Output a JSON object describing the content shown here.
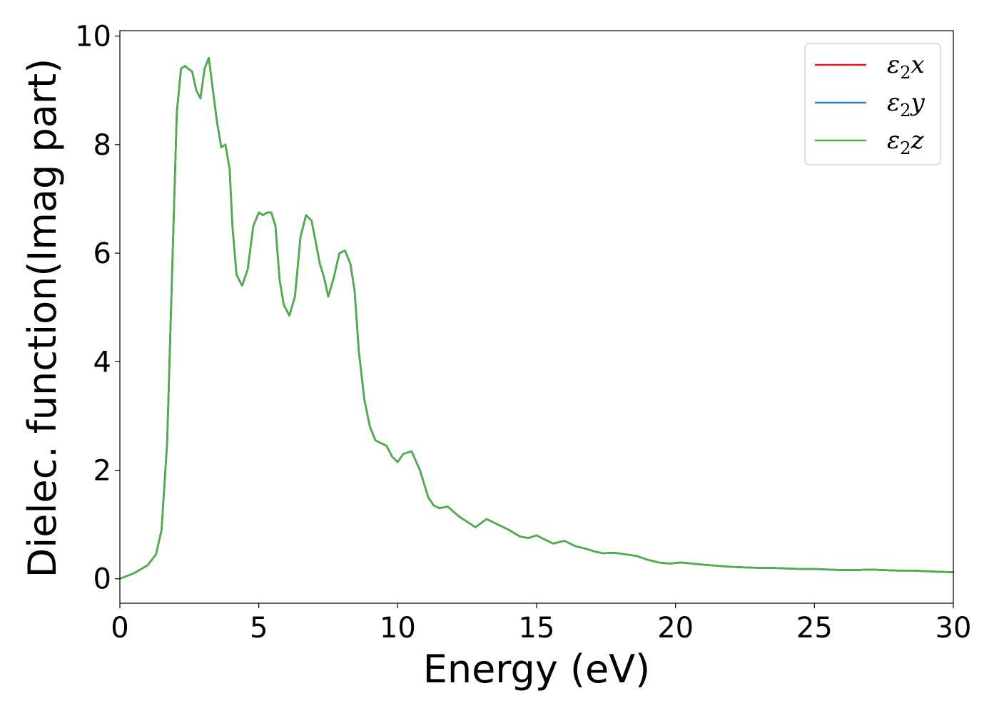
{
  "chart_data": {
    "type": "line",
    "xlabel": "Energy (eV)",
    "ylabel": "Dielec. function(Imag part)",
    "xlim": [
      0,
      30
    ],
    "ylim": [
      -0.45,
      10.1
    ],
    "xticks": [
      0,
      5,
      10,
      15,
      20,
      25,
      30
    ],
    "xtick_labels": [
      "0",
      "5",
      "10",
      "15",
      "20",
      "25",
      "30"
    ],
    "yticks": [
      0,
      2,
      4,
      6,
      8,
      10
    ],
    "ytick_labels": [
      "0",
      "2",
      "4",
      "6",
      "8",
      "10"
    ],
    "grid": false,
    "legend_position": "top-right",
    "legend": [
      {
        "base": "ε",
        "sub": "2",
        "axis": "x",
        "color": "#e41a1c"
      },
      {
        "base": "ε",
        "sub": "2",
        "axis": "y",
        "color": "#377eb8"
      },
      {
        "base": "ε",
        "sub": "2",
        "axis": "z",
        "color": "#4daf4a"
      }
    ],
    "series": [
      {
        "name": "ε2x",
        "color": "#e41a1c"
      },
      {
        "name": "ε2y",
        "color": "#377eb8"
      },
      {
        "name": "ε2z",
        "color": "#4daf4a"
      }
    ],
    "x": [
      0,
      0.5,
      1.0,
      1.3,
      1.5,
      1.7,
      1.9,
      2.05,
      2.2,
      2.35,
      2.45,
      2.6,
      2.75,
      2.9,
      3.05,
      3.2,
      3.35,
      3.5,
      3.65,
      3.8,
      3.95,
      4.05,
      4.2,
      4.4,
      4.6,
      4.8,
      5.0,
      5.15,
      5.3,
      5.45,
      5.6,
      5.75,
      5.9,
      6.1,
      6.3,
      6.5,
      6.7,
      6.9,
      7.05,
      7.2,
      7.35,
      7.5,
      7.7,
      7.9,
      8.1,
      8.3,
      8.45,
      8.6,
      8.8,
      9.0,
      9.2,
      9.4,
      9.6,
      9.8,
      10.0,
      10.2,
      10.5,
      10.8,
      11.1,
      11.3,
      11.5,
      11.8,
      12.2,
      12.5,
      12.8,
      13.2,
      13.6,
      14.0,
      14.4,
      14.7,
      15.0,
      15.3,
      15.6,
      16.0,
      16.4,
      16.8,
      17.1,
      17.4,
      17.8,
      18.2,
      18.6,
      19.0,
      19.4,
      19.8,
      20.2,
      20.6,
      21.0,
      21.5,
      22.0,
      22.5,
      23.0,
      23.5,
      24.0,
      24.5,
      25.0,
      25.5,
      26.0,
      26.5,
      27.0,
      27.5,
      28.0,
      28.5,
      29.0,
      29.5,
      30.0
    ],
    "values": [
      0.0,
      0.1,
      0.25,
      0.45,
      0.9,
      2.5,
      6.0,
      8.6,
      9.4,
      9.45,
      9.4,
      9.35,
      9.0,
      8.85,
      9.4,
      9.6,
      9.0,
      8.4,
      7.95,
      8.0,
      7.55,
      6.5,
      5.6,
      5.4,
      5.7,
      6.5,
      6.75,
      6.7,
      6.75,
      6.75,
      6.5,
      5.5,
      5.05,
      4.85,
      5.2,
      6.3,
      6.7,
      6.6,
      6.2,
      5.8,
      5.55,
      5.2,
      5.55,
      6.0,
      6.05,
      5.8,
      5.3,
      4.2,
      3.3,
      2.8,
      2.55,
      2.5,
      2.45,
      2.25,
      2.15,
      2.3,
      2.35,
      2.0,
      1.5,
      1.35,
      1.3,
      1.33,
      1.15,
      1.05,
      0.95,
      1.1,
      1.0,
      0.9,
      0.78,
      0.75,
      0.8,
      0.72,
      0.65,
      0.7,
      0.6,
      0.55,
      0.5,
      0.47,
      0.48,
      0.45,
      0.42,
      0.35,
      0.3,
      0.28,
      0.3,
      0.28,
      0.26,
      0.24,
      0.22,
      0.21,
      0.2,
      0.2,
      0.19,
      0.18,
      0.18,
      0.17,
      0.16,
      0.16,
      0.17,
      0.16,
      0.15,
      0.15,
      0.14,
      0.13,
      0.12
    ]
  }
}
